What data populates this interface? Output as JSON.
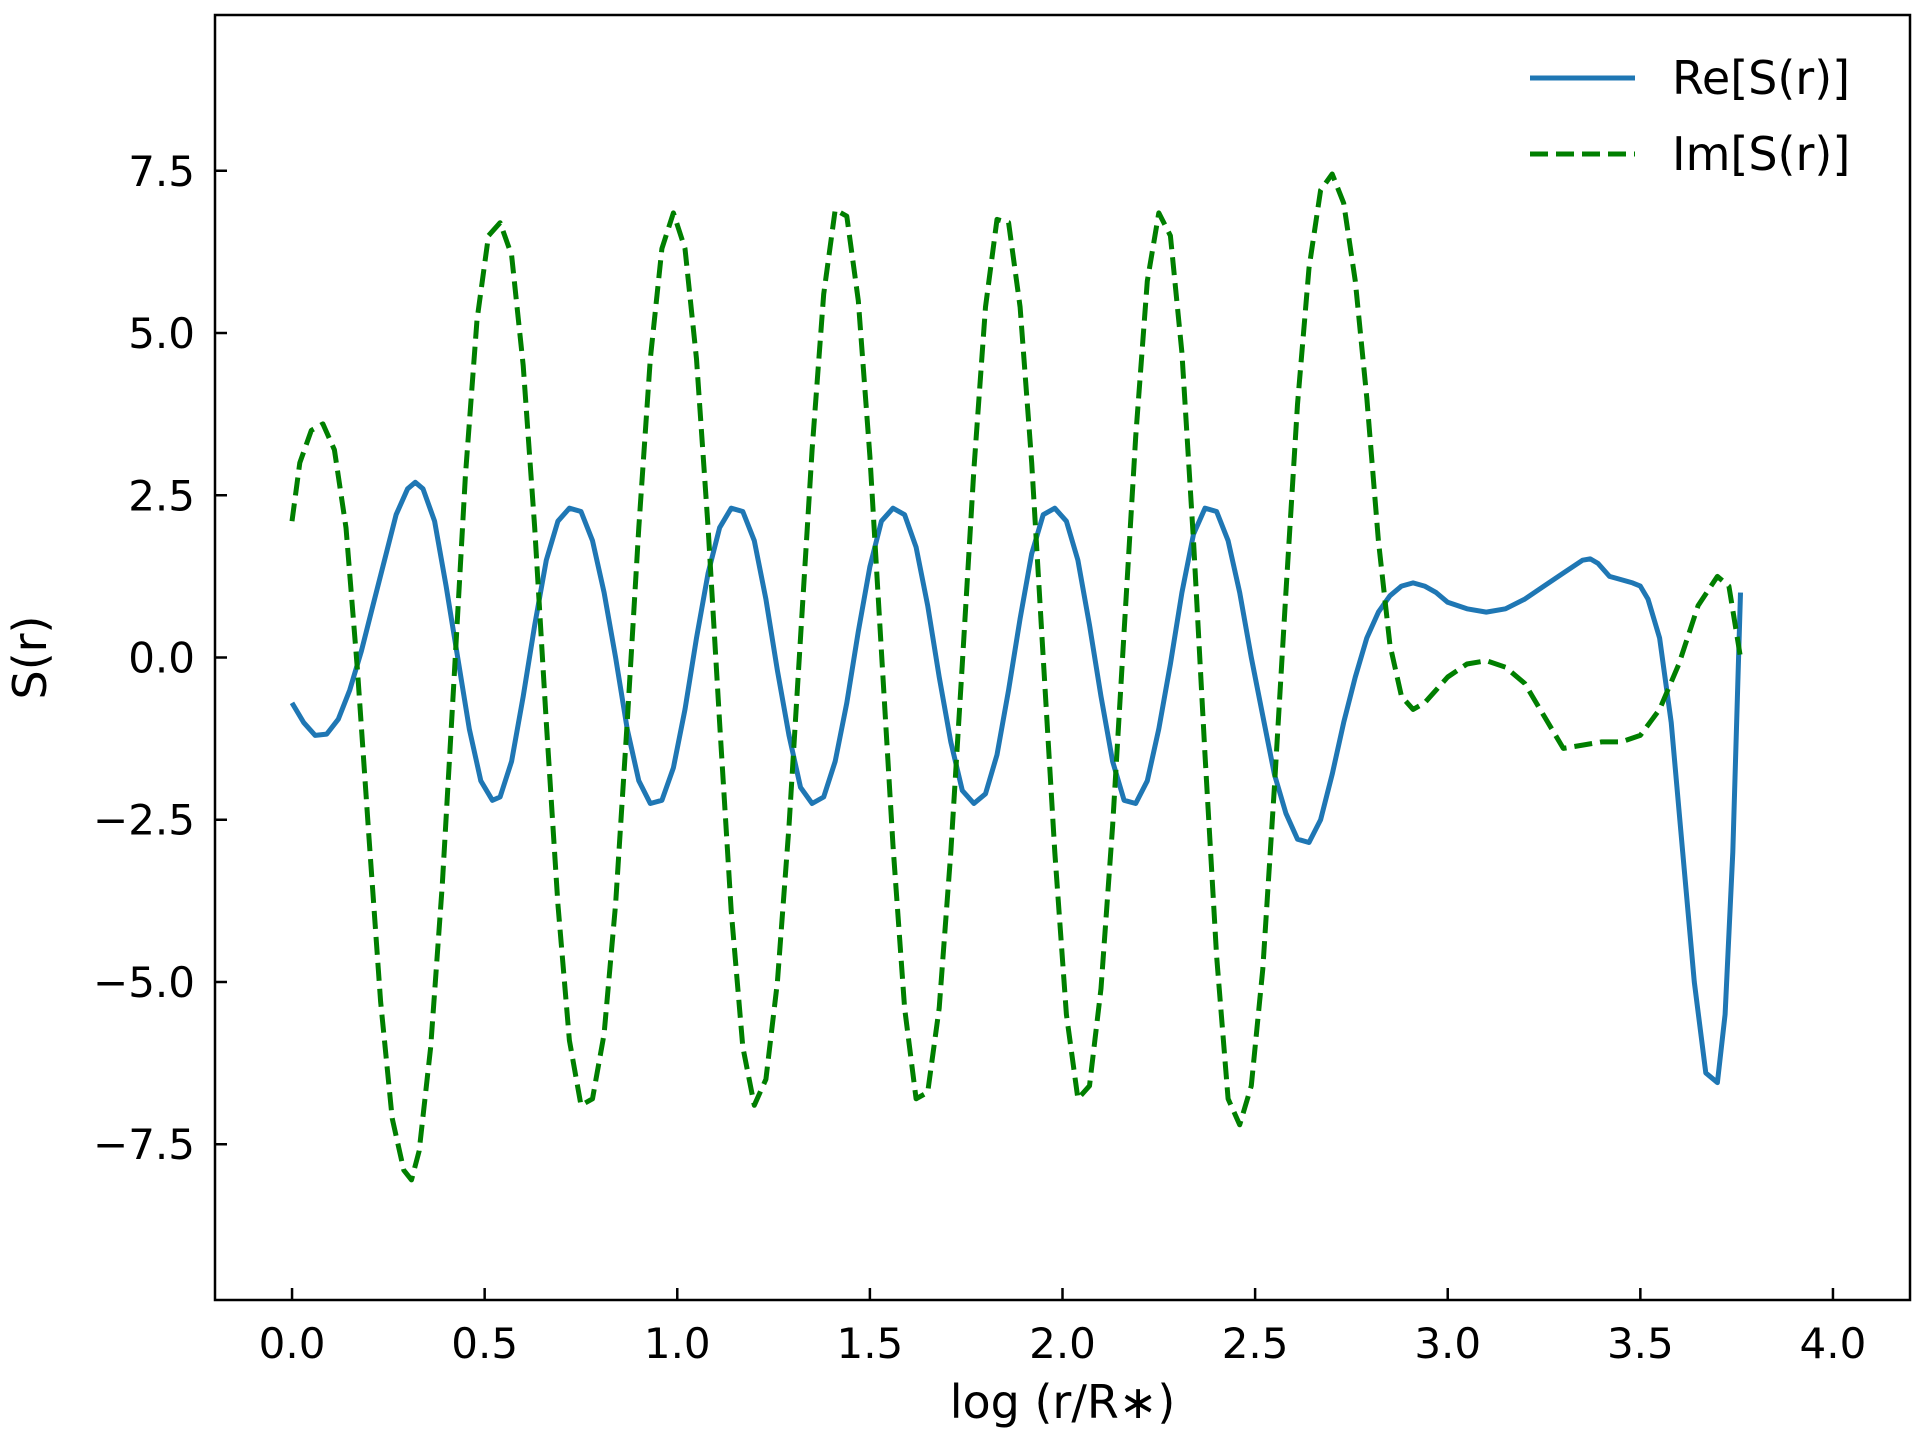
{
  "chart_data": {
    "type": "line",
    "xlabel": "log (r/R∗)",
    "ylabel": "S(r)",
    "xlim": [
      -0.2,
      4.2
    ],
    "ylim": [
      -9.9,
      9.9
    ],
    "xticks": [
      0.0,
      0.5,
      1.0,
      1.5,
      2.0,
      2.5,
      3.0,
      3.5,
      4.0
    ],
    "xtick_labels": [
      "0.0",
      "0.5",
      "1.0",
      "1.5",
      "2.0",
      "2.5",
      "3.0",
      "3.5",
      "4.0"
    ],
    "yticks": [
      -7.5,
      -5.0,
      -2.5,
      0.0,
      2.5,
      5.0,
      7.5
    ],
    "ytick_labels": [
      "−7.5",
      "−5.0",
      "−2.5",
      "0.0",
      "2.5",
      "5.0",
      "7.5"
    ],
    "grid": false,
    "legend_position": "top-right",
    "series": [
      {
        "name": "Re[S(r)]",
        "color": "#1f77b4",
        "style": "solid",
        "points": [
          [
            0.0,
            -0.7
          ],
          [
            0.03,
            -1.0
          ],
          [
            0.06,
            -1.2
          ],
          [
            0.09,
            -1.18
          ],
          [
            0.12,
            -0.95
          ],
          [
            0.15,
            -0.5
          ],
          [
            0.18,
            0.1
          ],
          [
            0.21,
            0.8
          ],
          [
            0.24,
            1.5
          ],
          [
            0.27,
            2.2
          ],
          [
            0.3,
            2.6
          ],
          [
            0.32,
            2.7
          ],
          [
            0.34,
            2.6
          ],
          [
            0.37,
            2.1
          ],
          [
            0.4,
            1.1
          ],
          [
            0.43,
            0.0
          ],
          [
            0.46,
            -1.1
          ],
          [
            0.49,
            -1.9
          ],
          [
            0.52,
            -2.2
          ],
          [
            0.54,
            -2.15
          ],
          [
            0.57,
            -1.6
          ],
          [
            0.6,
            -0.6
          ],
          [
            0.63,
            0.5
          ],
          [
            0.66,
            1.5
          ],
          [
            0.69,
            2.1
          ],
          [
            0.72,
            2.3
          ],
          [
            0.75,
            2.25
          ],
          [
            0.78,
            1.8
          ],
          [
            0.81,
            1.0
          ],
          [
            0.84,
            0.0
          ],
          [
            0.87,
            -1.1
          ],
          [
            0.9,
            -1.9
          ],
          [
            0.93,
            -2.25
          ],
          [
            0.96,
            -2.2
          ],
          [
            0.99,
            -1.7
          ],
          [
            1.02,
            -0.8
          ],
          [
            1.05,
            0.3
          ],
          [
            1.08,
            1.3
          ],
          [
            1.11,
            2.0
          ],
          [
            1.14,
            2.3
          ],
          [
            1.17,
            2.25
          ],
          [
            1.2,
            1.8
          ],
          [
            1.23,
            0.9
          ],
          [
            1.26,
            -0.2
          ],
          [
            1.29,
            -1.2
          ],
          [
            1.32,
            -2.0
          ],
          [
            1.35,
            -2.25
          ],
          [
            1.38,
            -2.15
          ],
          [
            1.41,
            -1.6
          ],
          [
            1.44,
            -0.7
          ],
          [
            1.47,
            0.4
          ],
          [
            1.5,
            1.4
          ],
          [
            1.53,
            2.1
          ],
          [
            1.56,
            2.3
          ],
          [
            1.59,
            2.2
          ],
          [
            1.62,
            1.7
          ],
          [
            1.65,
            0.8
          ],
          [
            1.68,
            -0.3
          ],
          [
            1.71,
            -1.3
          ],
          [
            1.74,
            -2.05
          ],
          [
            1.77,
            -2.25
          ],
          [
            1.8,
            -2.1
          ],
          [
            1.83,
            -1.5
          ],
          [
            1.86,
            -0.5
          ],
          [
            1.89,
            0.6
          ],
          [
            1.92,
            1.6
          ],
          [
            1.95,
            2.2
          ],
          [
            1.98,
            2.3
          ],
          [
            2.01,
            2.1
          ],
          [
            2.04,
            1.5
          ],
          [
            2.07,
            0.5
          ],
          [
            2.1,
            -0.6
          ],
          [
            2.13,
            -1.6
          ],
          [
            2.16,
            -2.2
          ],
          [
            2.19,
            -2.25
          ],
          [
            2.22,
            -1.9
          ],
          [
            2.25,
            -1.1
          ],
          [
            2.28,
            -0.1
          ],
          [
            2.31,
            1.0
          ],
          [
            2.34,
            1.9
          ],
          [
            2.37,
            2.3
          ],
          [
            2.4,
            2.25
          ],
          [
            2.43,
            1.8
          ],
          [
            2.46,
            1.0
          ],
          [
            2.49,
            0.0
          ],
          [
            2.52,
            -0.9
          ],
          [
            2.55,
            -1.8
          ],
          [
            2.58,
            -2.4
          ],
          [
            2.61,
            -2.8
          ],
          [
            2.64,
            -2.85
          ],
          [
            2.67,
            -2.5
          ],
          [
            2.7,
            -1.8
          ],
          [
            2.73,
            -1.0
          ],
          [
            2.76,
            -0.3
          ],
          [
            2.79,
            0.3
          ],
          [
            2.82,
            0.7
          ],
          [
            2.85,
            0.95
          ],
          [
            2.88,
            1.1
          ],
          [
            2.91,
            1.15
          ],
          [
            2.94,
            1.1
          ],
          [
            2.97,
            1.0
          ],
          [
            3.0,
            0.85
          ],
          [
            3.05,
            0.75
          ],
          [
            3.1,
            0.7
          ],
          [
            3.15,
            0.75
          ],
          [
            3.2,
            0.9
          ],
          [
            3.25,
            1.1
          ],
          [
            3.3,
            1.3
          ],
          [
            3.35,
            1.5
          ],
          [
            3.37,
            1.52
          ],
          [
            3.39,
            1.45
          ],
          [
            3.42,
            1.25
          ],
          [
            3.45,
            1.2
          ],
          [
            3.48,
            1.15
          ],
          [
            3.5,
            1.1
          ],
          [
            3.52,
            0.9
          ],
          [
            3.55,
            0.3
          ],
          [
            3.58,
            -1.0
          ],
          [
            3.61,
            -3.0
          ],
          [
            3.64,
            -5.0
          ],
          [
            3.67,
            -6.4
          ],
          [
            3.7,
            -6.55
          ],
          [
            3.72,
            -5.5
          ],
          [
            3.74,
            -3.0
          ],
          [
            3.76,
            1.0
          ]
        ]
      },
      {
        "name": "Im[S(r)]",
        "color": "#007f00",
        "style": "dashed",
        "points": [
          [
            0.0,
            2.1
          ],
          [
            0.02,
            3.0
          ],
          [
            0.05,
            3.5
          ],
          [
            0.08,
            3.6
          ],
          [
            0.11,
            3.2
          ],
          [
            0.14,
            2.0
          ],
          [
            0.17,
            -0.2
          ],
          [
            0.2,
            -2.8
          ],
          [
            0.23,
            -5.3
          ],
          [
            0.26,
            -7.1
          ],
          [
            0.29,
            -7.9
          ],
          [
            0.31,
            -8.05
          ],
          [
            0.33,
            -7.6
          ],
          [
            0.36,
            -6.0
          ],
          [
            0.39,
            -3.5
          ],
          [
            0.42,
            -0.4
          ],
          [
            0.45,
            2.8
          ],
          [
            0.48,
            5.2
          ],
          [
            0.51,
            6.5
          ],
          [
            0.54,
            6.7
          ],
          [
            0.57,
            6.2
          ],
          [
            0.6,
            4.5
          ],
          [
            0.63,
            2.0
          ],
          [
            0.66,
            -1.0
          ],
          [
            0.69,
            -3.8
          ],
          [
            0.72,
            -5.9
          ],
          [
            0.75,
            -6.9
          ],
          [
            0.78,
            -6.8
          ],
          [
            0.81,
            -5.8
          ],
          [
            0.84,
            -3.8
          ],
          [
            0.87,
            -1.0
          ],
          [
            0.9,
            2.0
          ],
          [
            0.93,
            4.6
          ],
          [
            0.96,
            6.3
          ],
          [
            0.99,
            6.85
          ],
          [
            1.02,
            6.3
          ],
          [
            1.05,
            4.6
          ],
          [
            1.08,
            2.0
          ],
          [
            1.11,
            -1.0
          ],
          [
            1.14,
            -3.9
          ],
          [
            1.17,
            -6.0
          ],
          [
            1.2,
            -6.9
          ],
          [
            1.23,
            -6.5
          ],
          [
            1.26,
            -5.0
          ],
          [
            1.29,
            -2.6
          ],
          [
            1.32,
            0.3
          ],
          [
            1.35,
            3.2
          ],
          [
            1.38,
            5.6
          ],
          [
            1.41,
            6.9
          ],
          [
            1.44,
            6.8
          ],
          [
            1.47,
            5.5
          ],
          [
            1.5,
            3.1
          ],
          [
            1.53,
            0.1
          ],
          [
            1.56,
            -2.9
          ],
          [
            1.59,
            -5.4
          ],
          [
            1.62,
            -6.8
          ],
          [
            1.65,
            -6.7
          ],
          [
            1.68,
            -5.4
          ],
          [
            1.71,
            -3.0
          ],
          [
            1.74,
            -0.1
          ],
          [
            1.77,
            2.9
          ],
          [
            1.8,
            5.4
          ],
          [
            1.83,
            6.75
          ],
          [
            1.86,
            6.7
          ],
          [
            1.89,
            5.4
          ],
          [
            1.92,
            3.0
          ],
          [
            1.95,
            0.0
          ],
          [
            1.98,
            -3.0
          ],
          [
            2.01,
            -5.5
          ],
          [
            2.04,
            -6.8
          ],
          [
            2.07,
            -6.6
          ],
          [
            2.1,
            -5.1
          ],
          [
            2.13,
            -2.6
          ],
          [
            2.16,
            0.4
          ],
          [
            2.19,
            3.4
          ],
          [
            2.22,
            5.8
          ],
          [
            2.25,
            6.85
          ],
          [
            2.28,
            6.5
          ],
          [
            2.31,
            4.7
          ],
          [
            2.34,
            1.8
          ],
          [
            2.37,
            -1.5
          ],
          [
            2.4,
            -4.6
          ],
          [
            2.43,
            -6.8
          ],
          [
            2.46,
            -7.2
          ],
          [
            2.49,
            -6.6
          ],
          [
            2.52,
            -4.8
          ],
          [
            2.55,
            -2.0
          ],
          [
            2.58,
            1.0
          ],
          [
            2.61,
            3.9
          ],
          [
            2.64,
            6.0
          ],
          [
            2.67,
            7.2
          ],
          [
            2.7,
            7.45
          ],
          [
            2.73,
            7.0
          ],
          [
            2.76,
            5.8
          ],
          [
            2.79,
            4.0
          ],
          [
            2.82,
            1.8
          ],
          [
            2.85,
            0.2
          ],
          [
            2.88,
            -0.6
          ],
          [
            2.91,
            -0.8
          ],
          [
            2.94,
            -0.7
          ],
          [
            2.97,
            -0.5
          ],
          [
            3.0,
            -0.3
          ],
          [
            3.05,
            -0.1
          ],
          [
            3.1,
            -0.05
          ],
          [
            3.15,
            -0.15
          ],
          [
            3.2,
            -0.4
          ],
          [
            3.25,
            -0.9
          ],
          [
            3.3,
            -1.4
          ],
          [
            3.35,
            -1.35
          ],
          [
            3.4,
            -1.3
          ],
          [
            3.45,
            -1.3
          ],
          [
            3.5,
            -1.2
          ],
          [
            3.55,
            -0.8
          ],
          [
            3.6,
            -0.1
          ],
          [
            3.65,
            0.8
          ],
          [
            3.7,
            1.25
          ],
          [
            3.73,
            1.1
          ],
          [
            3.76,
            0.0
          ]
        ]
      }
    ]
  }
}
